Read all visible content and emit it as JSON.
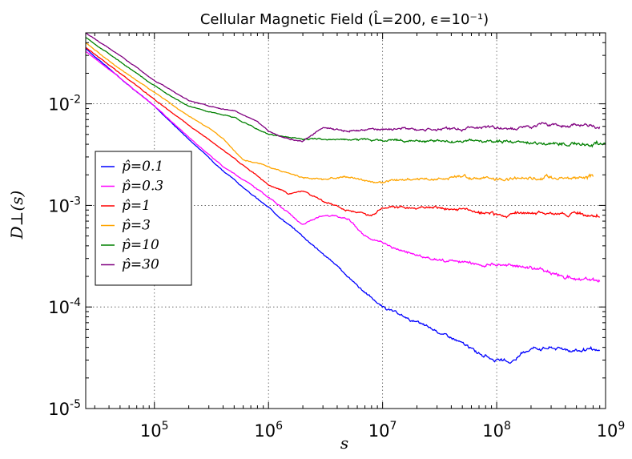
{
  "chart_data": {
    "type": "line",
    "title": "Cellular Magnetic Field (L̂=200, ϵ=10⁻¹)",
    "xlabel": "s",
    "ylabel": "D⊥(s)",
    "xscale": "log",
    "yscale": "log",
    "xlim": [
      25000,
      900000000
    ],
    "ylim": [
      1e-05,
      0.05
    ],
    "grid": true,
    "legend_position": "center-left",
    "x_ticks": [
      {
        "value": 100000,
        "base": "10",
        "exp": "5"
      },
      {
        "value": 1000000,
        "base": "10",
        "exp": "6"
      },
      {
        "value": 10000000,
        "base": "10",
        "exp": "7"
      },
      {
        "value": 100000000,
        "base": "10",
        "exp": "8"
      },
      {
        "value": 1000000000,
        "base": "10",
        "exp": "9"
      }
    ],
    "y_ticks": [
      {
        "value": 1e-05,
        "base": "10",
        "exp": "-5"
      },
      {
        "value": 0.0001,
        "base": "10",
        "exp": "-4"
      },
      {
        "value": 0.001,
        "base": "10",
        "exp": "-3"
      },
      {
        "value": 0.01,
        "base": "10",
        "exp": "-2"
      }
    ],
    "series": [
      {
        "name": "p̂=0.1",
        "color": "#0000ff",
        "x": [
          25000,
          50000,
          100000,
          200000,
          400000,
          700000,
          1000000,
          2000000,
          4000000,
          7000000,
          10000000,
          20000000,
          40000000,
          70000000,
          100000000,
          130000000,
          200000000,
          300000000,
          500000000,
          800000000
        ],
        "y": [
          0.035,
          0.018,
          0.0095,
          0.0045,
          0.0022,
          0.0013,
          0.00095,
          0.0005,
          0.00025,
          0.00014,
          0.0001,
          7e-05,
          5e-05,
          3.5e-05,
          3e-05,
          2.8e-05,
          4e-05,
          4e-05,
          3.8e-05,
          3.6e-05
        ]
      },
      {
        "name": "p̂=0.3",
        "color": "#ff00ff",
        "x": [
          25000,
          50000,
          100000,
          200000,
          400000,
          700000,
          1000000,
          2000000,
          3000000,
          5000000,
          7000000,
          10000000,
          20000000,
          40000000,
          70000000,
          100000000,
          200000000,
          400000000,
          800000000
        ],
        "y": [
          0.033,
          0.018,
          0.0095,
          0.0047,
          0.0024,
          0.0016,
          0.0012,
          0.00065,
          0.0008,
          0.00075,
          0.0005,
          0.00042,
          0.00032,
          0.00028,
          0.00026,
          0.00026,
          0.00025,
          0.0002,
          0.00018
        ]
      },
      {
        "name": "p̂=1",
        "color": "#ff0000",
        "x": [
          25000,
          50000,
          100000,
          200000,
          400000,
          700000,
          1000000,
          1500000,
          2000000,
          3000000,
          5000000,
          8000000,
          10000000,
          20000000,
          50000000,
          100000000,
          300000000,
          800000000
        ],
        "y": [
          0.036,
          0.02,
          0.011,
          0.0062,
          0.0035,
          0.0022,
          0.0016,
          0.0013,
          0.0014,
          0.0011,
          0.0009,
          0.0008,
          0.00095,
          0.00095,
          0.0009,
          0.0008,
          0.00085,
          0.0008
        ]
      },
      {
        "name": "p̂=3",
        "color": "#ffa500",
        "x": [
          25000,
          50000,
          100000,
          200000,
          300000,
          400000,
          600000,
          800000,
          1000000,
          2000000,
          3000000,
          5000000,
          8000000,
          10000000,
          20000000,
          50000000,
          100000000,
          300000000,
          700000000
        ],
        "y": [
          0.04,
          0.022,
          0.013,
          0.0075,
          0.0058,
          0.0045,
          0.0028,
          0.0026,
          0.0024,
          0.0019,
          0.0018,
          0.0019,
          0.0017,
          0.0017,
          0.0018,
          0.0019,
          0.0018,
          0.0019,
          0.0019
        ]
      },
      {
        "name": "p̂=10",
        "color": "#008000",
        "x": [
          25000,
          50000,
          100000,
          200000,
          300000,
          500000,
          800000,
          1000000,
          2000000,
          4000000,
          10000000,
          30000000,
          100000000,
          300000000,
          900000000
        ],
        "y": [
          0.045,
          0.026,
          0.015,
          0.0095,
          0.0083,
          0.0074,
          0.0056,
          0.005,
          0.0045,
          0.0045,
          0.0044,
          0.0043,
          0.0042,
          0.0041,
          0.004
        ]
      },
      {
        "name": "p̂=30",
        "color": "#800080",
        "x": [
          25000,
          50000,
          100000,
          200000,
          300000,
          500000,
          800000,
          1000000,
          1500000,
          2000000,
          3000000,
          5000000,
          10000000,
          30000000,
          100000000,
          200000000,
          400000000,
          800000000
        ],
        "y": [
          0.05,
          0.03,
          0.017,
          0.0108,
          0.0095,
          0.0085,
          0.0068,
          0.0053,
          0.0045,
          0.0043,
          0.0058,
          0.0055,
          0.0056,
          0.0057,
          0.0057,
          0.006,
          0.0062,
          0.0058
        ]
      }
    ]
  }
}
